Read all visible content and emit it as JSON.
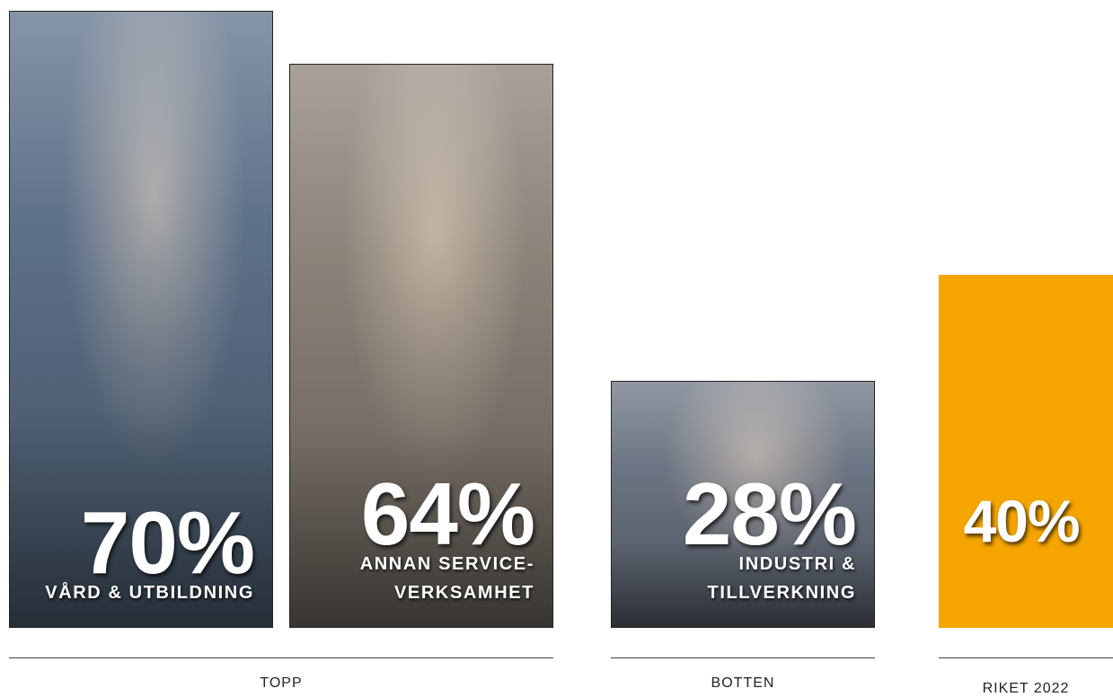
{
  "chart_data": {
    "type": "bar",
    "categories": [
      "VÅRD & UTBILDNING",
      "ANNAN SERVICE-VERKSAMHET",
      "INDUSTRI & TILLVERKNING",
      null
    ],
    "values": [
      70,
      64,
      28,
      40
    ],
    "value_labels": [
      "70%",
      "64%",
      "28%",
      "40%"
    ],
    "colors": [
      "#5d7189",
      "#8b8278",
      "#6c7583",
      "#f5a400"
    ],
    "ylim": [
      0,
      70
    ],
    "groups": [
      "TOPP",
      "BOTTEN",
      "RIKET 2022"
    ]
  }
}
